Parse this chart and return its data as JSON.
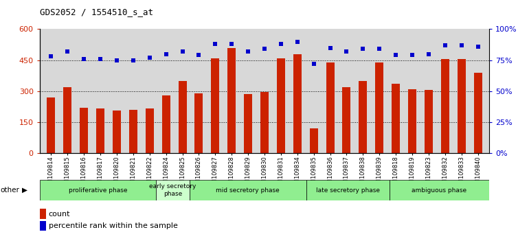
{
  "title": "GDS2052 / 1554510_s_at",
  "samples": [
    "GSM109814",
    "GSM109815",
    "GSM109816",
    "GSM109817",
    "GSM109820",
    "GSM109821",
    "GSM109822",
    "GSM109824",
    "GSM109825",
    "GSM109826",
    "GSM109827",
    "GSM109828",
    "GSM109829",
    "GSM109830",
    "GSM109831",
    "GSM109834",
    "GSM109835",
    "GSM109836",
    "GSM109837",
    "GSM109838",
    "GSM109839",
    "GSM109818",
    "GSM109819",
    "GSM109823",
    "GSM109832",
    "GSM109833",
    "GSM109840"
  ],
  "counts": [
    270,
    320,
    220,
    215,
    205,
    210,
    215,
    280,
    350,
    290,
    460,
    510,
    285,
    295,
    460,
    480,
    120,
    440,
    320,
    350,
    440,
    335,
    310,
    305,
    455,
    455,
    390
  ],
  "percentiles": [
    78,
    82,
    76,
    76,
    75,
    75,
    77,
    80,
    82,
    79,
    88,
    88,
    82,
    84,
    88,
    90,
    72,
    85,
    82,
    84,
    84,
    79,
    79,
    80,
    87,
    87,
    86
  ],
  "bar_color": "#cc2200",
  "dot_color": "#0000cc",
  "ylim_left": [
    0,
    600
  ],
  "ylim_right": [
    0,
    100
  ],
  "yticks_left": [
    0,
    150,
    300,
    450,
    600
  ],
  "yticks_right": [
    0,
    25,
    50,
    75,
    100
  ],
  "ytick_labels_left": [
    "0",
    "150",
    "300",
    "450",
    "600"
  ],
  "ytick_labels_right": [
    "0%",
    "25%",
    "50%",
    "75%",
    "100%"
  ],
  "grid_lines": [
    150,
    300,
    450
  ],
  "phases": [
    {
      "label": "proliferative phase",
      "start": 0,
      "end": 7,
      "color": "#90ee90"
    },
    {
      "label": "early secretory\nphase",
      "start": 7,
      "end": 9,
      "color": "#ccffcc"
    },
    {
      "label": "mid secretory phase",
      "start": 9,
      "end": 16,
      "color": "#90ee90"
    },
    {
      "label": "late secretory phase",
      "start": 16,
      "end": 21,
      "color": "#90ee90"
    },
    {
      "label": "ambiguous phase",
      "start": 21,
      "end": 27,
      "color": "#90ee90"
    }
  ],
  "plot_bg": "#ffffff",
  "ax_bg": "#d8d8d8",
  "legend_count_color": "#cc2200",
  "legend_dot_color": "#0000cc",
  "bar_width": 0.5
}
